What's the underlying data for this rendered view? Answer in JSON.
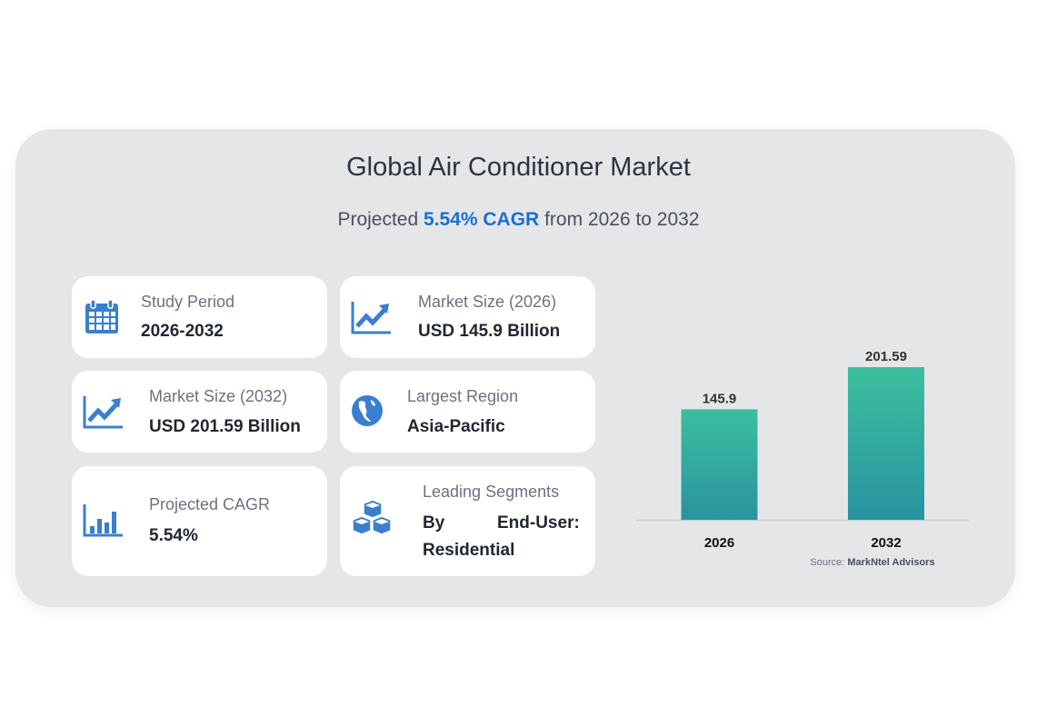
{
  "header": {
    "title": "Global Air Conditioner Market",
    "sub_prefix": "Projected ",
    "sub_highlight": "5.54% CAGR",
    "sub_suffix": " from 2026 to 2032"
  },
  "cards": [
    {
      "icon": "calendar-icon",
      "label": "Study Period",
      "value": "2026-2032"
    },
    {
      "icon": "trend-up-icon",
      "label": "Market Size (2026)",
      "value": "USD 145.9 Billion"
    },
    {
      "icon": "trend-up-icon",
      "label": "Market Size (2032)",
      "value": "USD 201.59 Billion"
    },
    {
      "icon": "globe-icon",
      "label": "Largest Region",
      "value": "Asia-Pacific"
    },
    {
      "icon": "bar-chart-icon",
      "label": "Projected CAGR",
      "value": "5.54%"
    },
    {
      "icon": "cubes-icon",
      "label": "Leading Segments",
      "value_a": "By",
      "value_b": "End-User:",
      "value_c": "Residential"
    }
  ],
  "colors": {
    "accent": "#1a6fd0",
    "icon": "#3a7fcf",
    "bar_top": "#3bbf9e",
    "bar_bottom": "#2a93a0"
  },
  "chart_data": {
    "type": "bar",
    "categories": [
      "2026",
      "2032"
    ],
    "values": [
      145.9,
      201.59
    ],
    "data_labels": [
      "145.9",
      "201.59"
    ],
    "ylim": [
      0,
      240
    ],
    "grid": false,
    "source_prefix": "Source: ",
    "source": "MarkNtel Advisors"
  }
}
